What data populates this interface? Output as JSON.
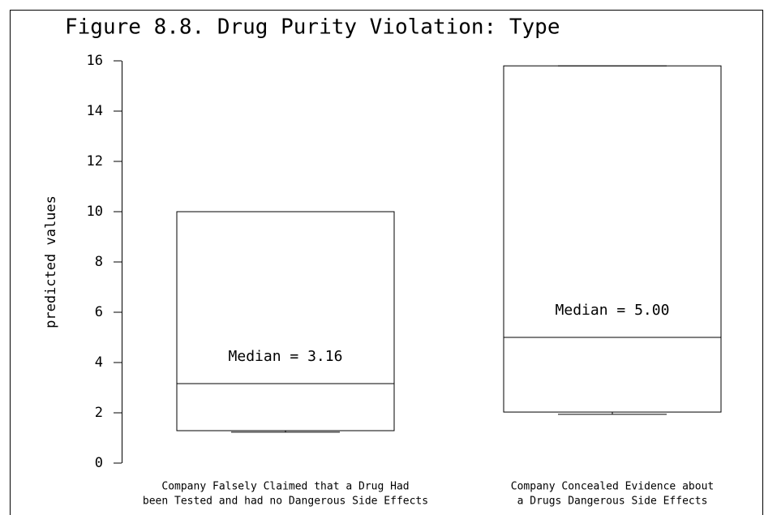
{
  "chart_data": {
    "type": "box",
    "title": "Figure 8.8. Drug Purity Violation: Type",
    "y_label": "predicted values",
    "categories": [
      [
        "Company Falsely Claimed that a Drug Had",
        "been Tested and had no Dangerous Side Effects"
      ],
      [
        "Company Concealed Evidence about",
        "a Drugs Dangerous Side Effects"
      ]
    ],
    "boxes": [
      {
        "whisker_low": 1.23,
        "q1": 1.29,
        "median": 3.16,
        "q3": 10.0,
        "whisker_high": 10.0,
        "median_label": "Median = 3.16"
      },
      {
        "whisker_low": 1.94,
        "q1": 2.03,
        "median": 5.0,
        "q3": 15.8,
        "whisker_high": 15.8,
        "median_label": "Median = 5.00"
      }
    ],
    "color": "#000000",
    "ylim": [
      0,
      16
    ],
    "yticks": [
      0,
      2,
      4,
      6,
      8,
      10,
      12,
      14,
      16
    ]
  }
}
